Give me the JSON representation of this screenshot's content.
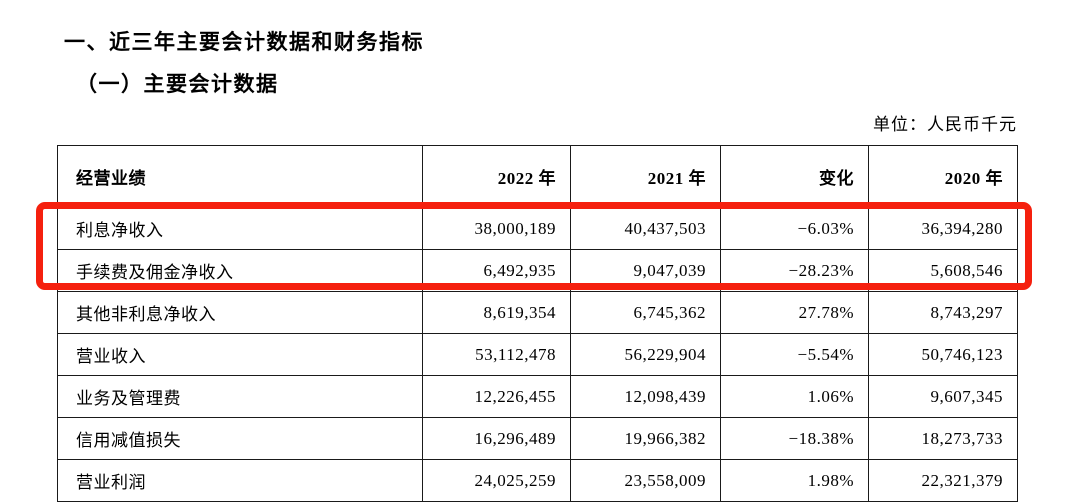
{
  "page": {
    "title": "一、近三年主要会计数据和财务指标",
    "subtitle": "（一）主要会计数据",
    "unit_note": "单位：人民币千元"
  },
  "table": {
    "columns": [
      "经营业绩",
      "2022 年",
      "2021 年",
      "变化",
      "2020 年"
    ],
    "rows": [
      {
        "label": "利息净收入",
        "y2022": "38,000,189",
        "y2021": "40,437,503",
        "change": "−6.03%",
        "y2020": "36,394,280"
      },
      {
        "label": "手续费及佣金净收入",
        "y2022": "6,492,935",
        "y2021": "9,047,039",
        "change": "−28.23%",
        "y2020": "5,608,546"
      },
      {
        "label": "其他非利息净收入",
        "y2022": "8,619,354",
        "y2021": "6,745,362",
        "change": "27.78%",
        "y2020": "8,743,297"
      },
      {
        "label": "营业收入",
        "y2022": "53,112,478",
        "y2021": "56,229,904",
        "change": "−5.54%",
        "y2020": "50,746,123"
      },
      {
        "label": "业务及管理费",
        "y2022": "12,226,455",
        "y2021": "12,098,439",
        "change": "1.06%",
        "y2020": "9,607,345"
      },
      {
        "label": "信用减值损失",
        "y2022": "16,296,489",
        "y2021": "19,966,382",
        "change": "−18.38%",
        "y2020": "18,273,733"
      },
      {
        "label": "营业利润",
        "y2022": "24,025,259",
        "y2021": "23,558,009",
        "change": "1.98%",
        "y2020": "22,321,379"
      }
    ]
  },
  "highlight": {
    "color": "#f5200e",
    "highlighted_row_labels": [
      "利息净收入",
      "手续费及佣金净收入"
    ]
  },
  "colors": {
    "text": "#000000",
    "table_border": "#1a1a1a",
    "background": "#ffffff"
  }
}
